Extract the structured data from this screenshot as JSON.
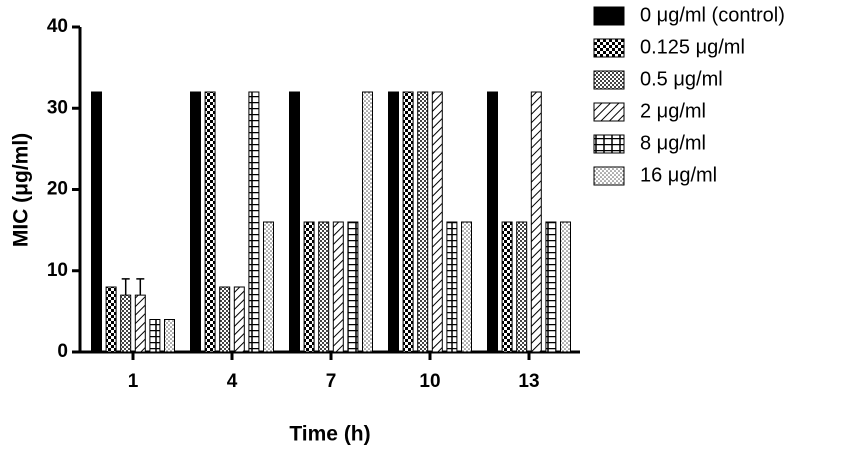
{
  "chart_data": {
    "type": "bar",
    "xlabel": "Time (h)",
    "ylabel": "MIC (μg/ml)",
    "categories": [
      "1",
      "4",
      "7",
      "10",
      "13"
    ],
    "series": [
      {
        "name": "0 μg/ml (control)",
        "color": "#000000",
        "pattern": "solid",
        "values": [
          32,
          32,
          32,
          32,
          32
        ]
      },
      {
        "name": "0.125 μg/ml",
        "color": "#000000",
        "pattern": "checker",
        "values": [
          8,
          32,
          16,
          32,
          16
        ]
      },
      {
        "name": "0.5 μg/ml",
        "color": "#000000",
        "pattern": "fine-checker",
        "values": [
          7,
          8,
          16,
          32,
          16
        ],
        "errors": [
          2,
          null,
          null,
          null,
          null
        ]
      },
      {
        "name": "2 μg/ml",
        "color": "#000000",
        "pattern": "diagonal",
        "values": [
          7,
          8,
          16,
          32,
          32
        ],
        "errors": [
          2,
          null,
          null,
          null,
          null
        ]
      },
      {
        "name": "8 μg/ml",
        "color": "#000000",
        "pattern": "brick",
        "values": [
          4,
          32,
          16,
          16,
          16
        ]
      },
      {
        "name": "16 μg/ml",
        "color": "#000000",
        "pattern": "dots",
        "values": [
          4,
          16,
          32,
          16,
          16
        ]
      }
    ],
    "ylim": [
      0,
      40
    ],
    "yticks": [
      0,
      10,
      20,
      30,
      40
    ],
    "legend": "right"
  }
}
